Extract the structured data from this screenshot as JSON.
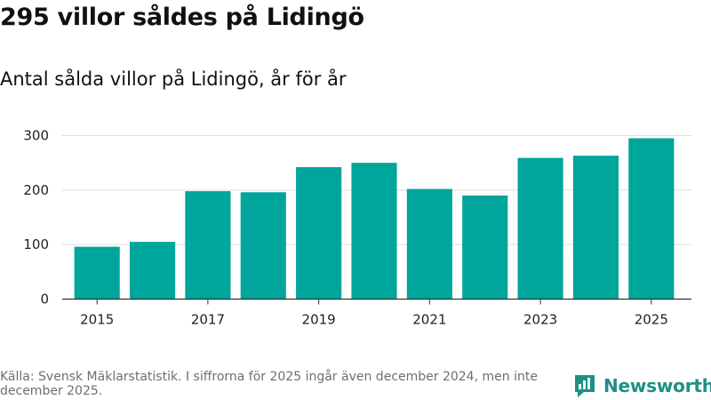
{
  "title": "295 villor såldes på Lidingö",
  "subtitle": "Antal sålda villor på Lidingö, år för år",
  "source": "Källa: Svensk Mäklarstatistik. I siffrorna för 2025 ingår även december 2024, men inte december 2025.",
  "brand": {
    "name": "Newsworthy",
    "color": "#1f8f84",
    "icon": "bar-chart-icon"
  },
  "colors": {
    "bar": "#00a59b",
    "grid": "#dddddd",
    "axis": "#333333"
  },
  "chart_data": {
    "type": "bar",
    "title": "295 villor såldes på Lidingö",
    "subtitle": "Antal sålda villor på Lidingö, år för år",
    "xlabel": "",
    "ylabel": "",
    "categories": [
      "2015",
      "2016",
      "2017",
      "2018",
      "2019",
      "2020",
      "2021",
      "2022",
      "2023",
      "2024",
      "2025"
    ],
    "values": [
      96,
      105,
      198,
      196,
      242,
      250,
      202,
      190,
      259,
      263,
      295
    ],
    "x_tick_labels": [
      "2015",
      "2017",
      "2019",
      "2021",
      "2023",
      "2025"
    ],
    "y_ticks": [
      0,
      100,
      200,
      300
    ],
    "ylim": [
      0,
      300
    ],
    "grid": true,
    "legend": "none"
  }
}
